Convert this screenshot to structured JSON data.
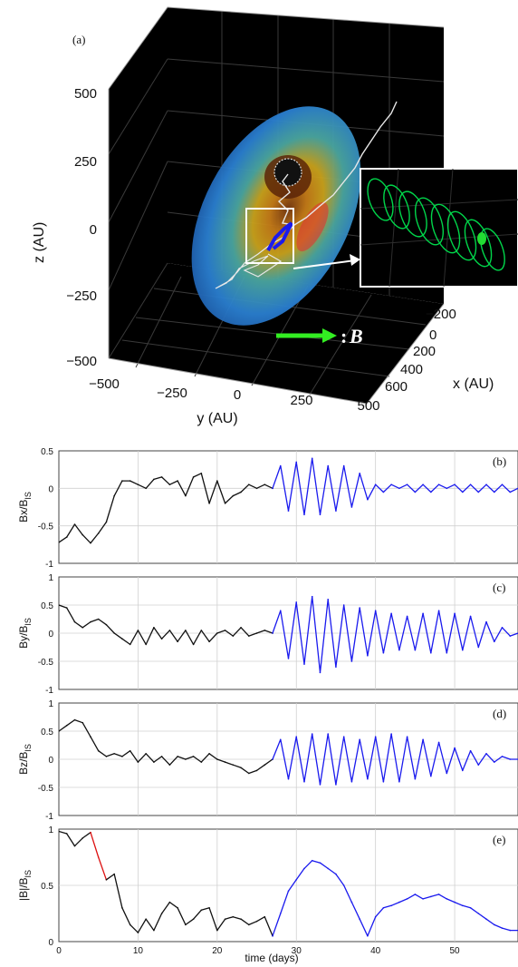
{
  "panel_a": {
    "label": "(a)",
    "z_axis": {
      "label": "z (AU)",
      "ticks": [
        "500",
        "250",
        "0",
        "−250",
        "−500"
      ]
    },
    "y_axis": {
      "label": "y (AU)",
      "ticks": [
        "−500",
        "−250",
        "0",
        "250",
        "500"
      ]
    },
    "x_axis": {
      "label": "x (AU)",
      "ticks": [
        "−200",
        "0",
        "200",
        "400",
        "600"
      ]
    },
    "arrow_legend": {
      "colon": ":",
      "symbol": "B"
    },
    "colors": {
      "background": "#000000",
      "field_line": "#e8e8e8",
      "zoom_line": "#00d64a",
      "arrow": "#33ee22",
      "shell_outer": "#2a7fd0",
      "shell_inner": "#c9a21c"
    }
  },
  "time_label": "time (days)",
  "colors": {
    "black": "#111111",
    "blue": "#1a1aee",
    "red": "#dd1111",
    "grid": "#d0d0d0"
  },
  "chart_data": [
    {
      "type": "line",
      "panel": "(b)",
      "ylabel": "Bx/B",
      "ylabel_sub": "IS",
      "xlim": [
        0,
        58
      ],
      "ylim": [
        -1,
        0.5
      ],
      "xticks": [],
      "yticks": [
        0.5,
        0,
        -0.5,
        -1
      ],
      "ytick_labels": [
        "0.5",
        "0",
        "-0.5",
        "-1"
      ],
      "series": [
        {
          "color_key": "black",
          "x": [
            0,
            1,
            2,
            3,
            4,
            5,
            6,
            7,
            8,
            9,
            10,
            11,
            12,
            13,
            14,
            15,
            16,
            17,
            18,
            19,
            20,
            21,
            22,
            23,
            24,
            25,
            26,
            27
          ],
          "y": [
            -0.72,
            -0.65,
            -0.48,
            -0.62,
            -0.73,
            -0.6,
            -0.45,
            -0.1,
            0.1,
            0.1,
            0.05,
            0.0,
            0.12,
            0.15,
            0.05,
            0.1,
            -0.1,
            0.15,
            0.2,
            -0.2,
            0.1,
            -0.2,
            -0.1,
            -0.05,
            0.05,
            0.0,
            0.05,
            0.0
          ]
        },
        {
          "color_key": "blue",
          "x": [
            27,
            28,
            29,
            30,
            31,
            32,
            33,
            34,
            35,
            36,
            37,
            38,
            39,
            40,
            41,
            42,
            43,
            44,
            45,
            46,
            47,
            48,
            49,
            50,
            51,
            52,
            53,
            54,
            55,
            56,
            57,
            58
          ],
          "y": [
            0.0,
            0.3,
            -0.3,
            0.35,
            -0.35,
            0.4,
            -0.35,
            0.3,
            -0.3,
            0.3,
            -0.25,
            0.2,
            -0.15,
            0.05,
            -0.05,
            0.05,
            0.0,
            0.05,
            -0.05,
            0.05,
            -0.05,
            0.05,
            0.0,
            0.05,
            -0.05,
            0.05,
            -0.05,
            0.05,
            -0.05,
            0.05,
            -0.05,
            0.0
          ]
        }
      ]
    },
    {
      "type": "line",
      "panel": "(c)",
      "ylabel": "By/B",
      "ylabel_sub": "IS",
      "xlim": [
        0,
        58
      ],
      "ylim": [
        -1,
        1
      ],
      "xticks": [],
      "yticks": [
        1,
        0.5,
        0,
        -0.5,
        -1
      ],
      "ytick_labels": [
        "1",
        "0.5",
        "0",
        "-0.5",
        "-1"
      ],
      "series": [
        {
          "color_key": "black",
          "x": [
            0,
            1,
            2,
            3,
            4,
            5,
            6,
            7,
            8,
            9,
            10,
            11,
            12,
            13,
            14,
            15,
            16,
            17,
            18,
            19,
            20,
            21,
            22,
            23,
            24,
            25,
            26,
            27
          ],
          "y": [
            0.5,
            0.45,
            0.2,
            0.1,
            0.2,
            0.25,
            0.15,
            0.0,
            -0.1,
            -0.2,
            0.05,
            -0.2,
            0.1,
            -0.1,
            0.05,
            -0.15,
            0.05,
            -0.2,
            0.05,
            -0.15,
            0.0,
            0.05,
            -0.05,
            0.1,
            -0.05,
            0.0,
            0.05,
            0.0
          ]
        },
        {
          "color_key": "blue",
          "x": [
            27,
            28,
            29,
            30,
            31,
            32,
            33,
            34,
            35,
            36,
            37,
            38,
            39,
            40,
            41,
            42,
            43,
            44,
            45,
            46,
            47,
            48,
            49,
            50,
            51,
            52,
            53,
            54,
            55,
            56,
            57,
            58
          ],
          "y": [
            0.0,
            0.4,
            -0.45,
            0.55,
            -0.55,
            0.65,
            -0.7,
            0.6,
            -0.6,
            0.5,
            -0.5,
            0.45,
            -0.4,
            0.4,
            -0.35,
            0.35,
            -0.3,
            0.3,
            -0.3,
            0.35,
            -0.35,
            0.4,
            -0.35,
            0.35,
            -0.3,
            0.3,
            -0.25,
            0.2,
            -0.15,
            0.1,
            -0.05,
            0.0
          ]
        }
      ]
    },
    {
      "type": "line",
      "panel": "(d)",
      "ylabel": "Bz/B",
      "ylabel_sub": "IS",
      "xlim": [
        0,
        58
      ],
      "ylim": [
        -1,
        1
      ],
      "xticks": [],
      "yticks": [
        1,
        0.5,
        0,
        -0.5,
        -1
      ],
      "ytick_labels": [
        "1",
        "0.5",
        "0",
        "-0.5",
        "-1"
      ],
      "series": [
        {
          "color_key": "black",
          "x": [
            0,
            1,
            2,
            3,
            4,
            5,
            6,
            7,
            8,
            9,
            10,
            11,
            12,
            13,
            14,
            15,
            16,
            17,
            18,
            19,
            20,
            21,
            22,
            23,
            24,
            25,
            26,
            27
          ],
          "y": [
            0.5,
            0.6,
            0.7,
            0.65,
            0.4,
            0.15,
            0.05,
            0.1,
            0.05,
            0.15,
            -0.05,
            0.1,
            -0.05,
            0.05,
            -0.1,
            0.05,
            0.0,
            0.05,
            -0.05,
            0.1,
            0.0,
            -0.05,
            -0.1,
            -0.15,
            -0.25,
            -0.2,
            -0.1,
            0.0
          ]
        },
        {
          "color_key": "blue",
          "x": [
            27,
            28,
            29,
            30,
            31,
            32,
            33,
            34,
            35,
            36,
            37,
            38,
            39,
            40,
            41,
            42,
            43,
            44,
            45,
            46,
            47,
            48,
            49,
            50,
            51,
            52,
            53,
            54,
            55,
            56,
            57,
            58
          ],
          "y": [
            0.0,
            0.35,
            -0.35,
            0.4,
            -0.4,
            0.45,
            -0.45,
            0.45,
            -0.45,
            0.4,
            -0.4,
            0.35,
            -0.35,
            0.4,
            -0.4,
            0.45,
            -0.4,
            0.4,
            -0.35,
            0.35,
            -0.3,
            0.3,
            -0.25,
            0.2,
            -0.2,
            0.15,
            -0.1,
            0.1,
            -0.05,
            0.05,
            0.0,
            0.0
          ]
        }
      ]
    },
    {
      "type": "line",
      "panel": "(e)",
      "ylabel": "|B|/B",
      "ylabel_sub": "IS",
      "xlim": [
        0,
        58
      ],
      "ylim": [
        0,
        1
      ],
      "xticks": [
        0,
        10,
        20,
        30,
        40,
        50
      ],
      "xtick_labels": [
        "0",
        "10",
        "20",
        "30",
        "40",
        "50"
      ],
      "yticks": [
        1,
        0.5,
        0
      ],
      "ytick_labels": [
        "1",
        "0.5",
        "0"
      ],
      "series": [
        {
          "color_key": "black",
          "x": [
            0,
            1,
            2,
            3,
            4
          ],
          "y": [
            0.98,
            0.96,
            0.85,
            0.92,
            0.97
          ]
        },
        {
          "color_key": "red",
          "x": [
            4,
            5,
            6
          ],
          "y": [
            0.97,
            0.75,
            0.55
          ]
        },
        {
          "color_key": "black",
          "x": [
            6,
            7,
            8,
            9,
            10,
            11,
            12,
            13,
            14,
            15,
            16,
            17,
            18,
            19,
            20,
            21,
            22,
            23,
            24,
            25,
            26,
            27
          ],
          "y": [
            0.55,
            0.6,
            0.3,
            0.15,
            0.08,
            0.2,
            0.1,
            0.25,
            0.35,
            0.3,
            0.15,
            0.2,
            0.28,
            0.3,
            0.1,
            0.2,
            0.22,
            0.2,
            0.15,
            0.18,
            0.22,
            0.05
          ]
        },
        {
          "color_key": "blue",
          "x": [
            27,
            28,
            29,
            30,
            31,
            32,
            33,
            34,
            35,
            36,
            37,
            38,
            39,
            40,
            41,
            42,
            43,
            44,
            45,
            46,
            47,
            48,
            49,
            50,
            51,
            52,
            53,
            54,
            55,
            56,
            57,
            58
          ],
          "y": [
            0.05,
            0.25,
            0.45,
            0.55,
            0.65,
            0.72,
            0.7,
            0.65,
            0.6,
            0.5,
            0.35,
            0.2,
            0.05,
            0.22,
            0.3,
            0.32,
            0.35,
            0.38,
            0.42,
            0.38,
            0.4,
            0.42,
            0.38,
            0.35,
            0.32,
            0.3,
            0.25,
            0.2,
            0.15,
            0.12,
            0.1,
            0.1
          ]
        }
      ]
    }
  ]
}
